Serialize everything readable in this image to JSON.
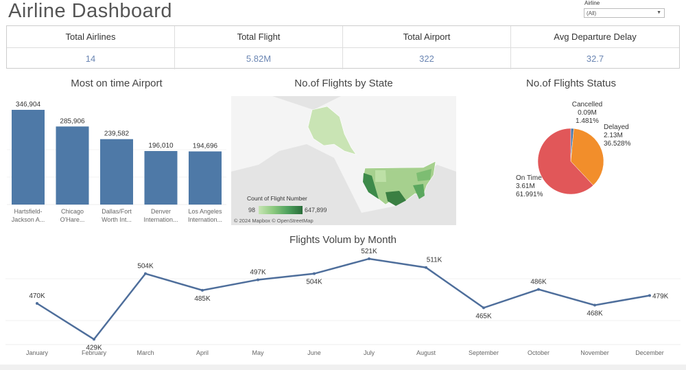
{
  "header": {
    "title": "Airline Dashboard",
    "filter_label": "Airline",
    "filter_value": "(All)"
  },
  "kpis": [
    {
      "label": "Total Airlines",
      "value": "14"
    },
    {
      "label": "Total  Flight",
      "value": "5.82M"
    },
    {
      "label": "Total Airport",
      "value": "322"
    },
    {
      "label": "Avg Departure Delay",
      "value": "32.7"
    }
  ],
  "charts_titles": {
    "bar": "Most on time Airport",
    "map": "No.of  Flights by State",
    "pie": "No.of Flights Status",
    "line": "Flights Volum by Month"
  },
  "map": {
    "legend_title": "Count of Flight Number",
    "legend_min": "98",
    "legend_max": "647,899",
    "attribution": "© 2024 Mapbox © OpenStreetMap"
  },
  "chart_data": [
    {
      "type": "bar",
      "title": "Most on time Airport",
      "categories": [
        "Hartsfield-Jackson A...",
        "Chicago O'Hare...",
        "Dallas/Fort Worth Int...",
        "Denver Internation...",
        "Los Angeles Internation..."
      ],
      "values": [
        346904,
        285906,
        239582,
        196010,
        194696
      ],
      "labels": [
        "346,904",
        "285,906",
        "239,582",
        "196,010",
        "194,696"
      ],
      "color": "#4e79a7"
    },
    {
      "type": "pie",
      "title": "No.of Flights Status",
      "slices": [
        {
          "name": "Cancelled",
          "value_label": "0.09M",
          "percent": 1.481,
          "percent_label": "1.481%",
          "color": "#4e79a7"
        },
        {
          "name": "Delayed",
          "value_label": "2.13M",
          "percent": 36.528,
          "percent_label": "36.528%",
          "color": "#f28e2b"
        },
        {
          "name": "On Time",
          "value_label": "3.61M",
          "percent": 61.991,
          "percent_label": "61.991%",
          "color": "#e15759"
        }
      ]
    },
    {
      "type": "line",
      "title": "Flights Volum by Month",
      "categories": [
        "January",
        "February",
        "March",
        "April",
        "May",
        "June",
        "July",
        "August",
        "September",
        "October",
        "November",
        "December"
      ],
      "values": [
        470,
        429,
        504,
        485,
        497,
        504,
        521,
        511,
        465,
        486,
        468,
        479
      ],
      "labels": [
        "470K",
        "429K",
        "504K",
        "485K",
        "497K",
        "504K",
        "521K",
        "511K",
        "465K",
        "486K",
        "468K",
        "479K"
      ],
      "ylim": [
        420,
        530
      ],
      "color": "#4e6e9b"
    }
  ]
}
